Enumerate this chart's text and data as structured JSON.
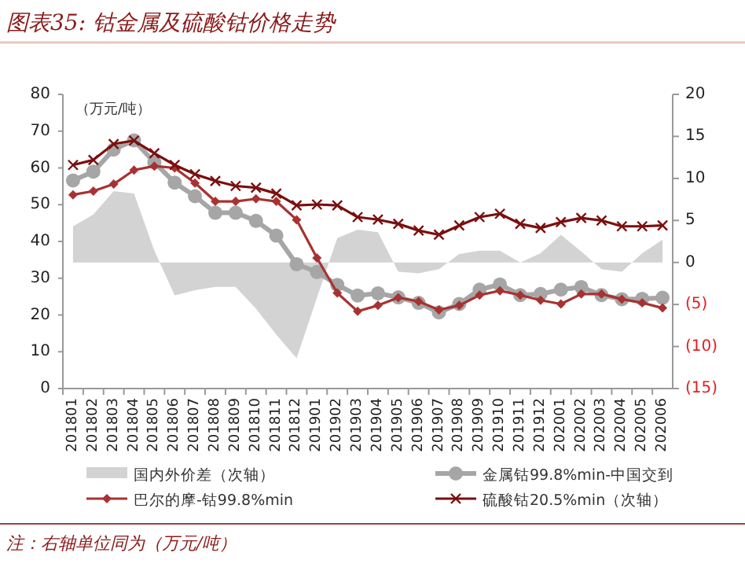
{
  "chart_data": {
    "type": "line",
    "title": "图表35: 钴金属及硫酸钴价格走势",
    "ylabel": "（万元/吨）",
    "annotations": [
      "注：右轴单位同为（万元/吨）"
    ],
    "categories": [
      "201801",
      "201802",
      "201803",
      "201804",
      "201805",
      "201806",
      "201807",
      "201808",
      "201809",
      "201810",
      "201811",
      "201812",
      "201901",
      "201902",
      "201903",
      "201904",
      "201905",
      "201906",
      "201907",
      "201908",
      "201909",
      "201910",
      "201911",
      "201912",
      "202001",
      "202002",
      "202003",
      "202004",
      "202005",
      "202006"
    ],
    "ylim": [
      0,
      80
    ],
    "yticks": [
      0,
      10,
      20,
      30,
      40,
      50,
      60,
      70,
      80
    ],
    "y2lim": [
      -15,
      20
    ],
    "y2ticks": [
      {
        "value": -15,
        "label": "(15)"
      },
      {
        "value": -10,
        "label": "(10)"
      },
      {
        "value": -5,
        "label": "(5)"
      },
      0,
      5,
      10,
      15,
      20
    ],
    "grid": false,
    "legend": "bottom",
    "series": [
      {
        "name": "国内外价差（次轴）",
        "type": "area",
        "axis": "y2",
        "color": "#d3d3d3",
        "values": [
          4.3,
          5.7,
          8.5,
          8.2,
          1.4,
          -3.9,
          -3.3,
          -2.9,
          -2.9,
          -5.5,
          -8.6,
          -11.4,
          -4.2,
          2.9,
          3.9,
          3.6,
          -1.1,
          -1.3,
          -0.8,
          1.0,
          1.4,
          1.4,
          0,
          1.1,
          3.3,
          1.3,
          -0.8,
          -1.1,
          1.1,
          2.7
        ]
      },
      {
        "name": "金属钴99.8%min-中国交到",
        "color": "#a6a6a6",
        "marker": "circle",
        "values": [
          56.6,
          59,
          65,
          67.5,
          61.5,
          56,
          52.3,
          47.8,
          47.8,
          45.6,
          41.6,
          33.8,
          31.7,
          28.2,
          25.3,
          25.9,
          24.8,
          23.3,
          20.7,
          23.0,
          26.9,
          28.3,
          25.4,
          25.7,
          26.9,
          27.6,
          25.4,
          24.3,
          24.4,
          24.7
        ]
      },
      {
        "name": "巴尔的摩-钴99.8%min",
        "color": "#a83232",
        "marker": "diamond",
        "values": [
          52.7,
          53.7,
          55.6,
          59.4,
          60.5,
          60,
          55.9,
          50.9,
          50.9,
          51.6,
          50.9,
          45.9,
          35.5,
          26,
          21,
          22.6,
          24.7,
          23.7,
          21.4,
          22.6,
          25.4,
          26.6,
          25.4,
          24.0,
          23.0,
          25.7,
          25.7,
          24.3,
          23.3,
          21.9
        ]
      },
      {
        "name": "硫酸钴20.5%min（次轴）",
        "axis": "y2",
        "color": "#7a0f0f",
        "marker": "cross",
        "values": [
          11.6,
          12.2,
          14.1,
          14.5,
          13.0,
          11.6,
          10.5,
          9.7,
          9.1,
          8.9,
          8.2,
          6.8,
          6.9,
          6.8,
          5.4,
          5.1,
          4.6,
          3.8,
          3.3,
          4.4,
          5.4,
          5.8,
          4.6,
          4.1,
          4.8,
          5.3,
          5.0,
          4.3,
          4.3,
          4.4
        ]
      }
    ]
  }
}
